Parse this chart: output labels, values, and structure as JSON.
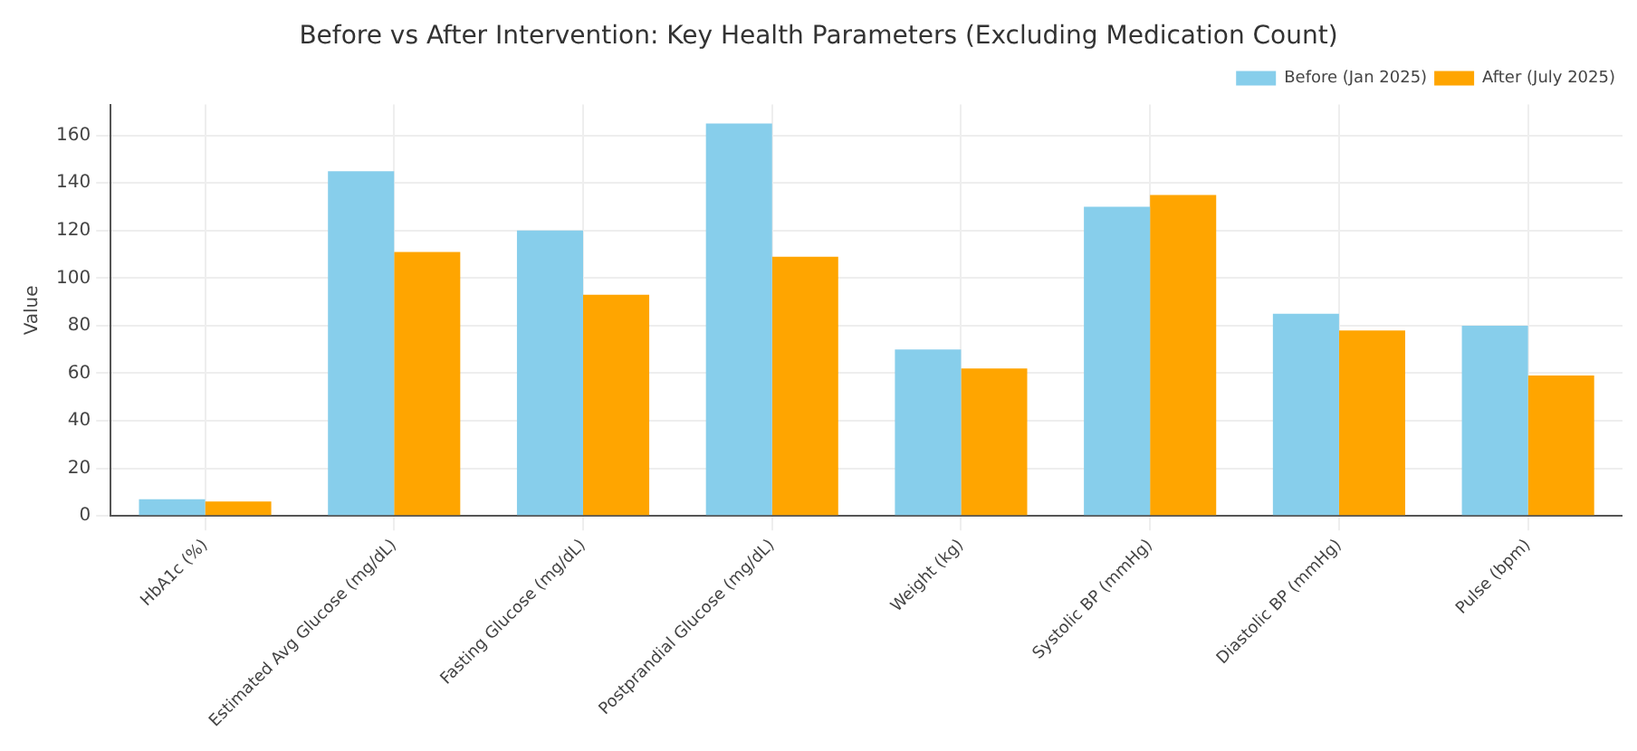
{
  "chart_data": {
    "type": "bar",
    "title": "Before vs After Intervention: Key Health Parameters (Excluding Medication Count)",
    "ylabel": "Value",
    "categories": [
      "HbA1c (%)",
      "Estimated Avg Glucose (mg/dL)",
      "Fasting Glucose (mg/dL)",
      "Postprandial Glucose (mg/dL)",
      "Weight (kg)",
      "Systolic BP (mmHg)",
      "Diastolic BP (mmHg)",
      "Pulse (bpm)"
    ],
    "series": [
      {
        "name": "Before (Jan 2025)",
        "color": "#87ceeb",
        "values": [
          7,
          145,
          120,
          165,
          70,
          130,
          85,
          80
        ]
      },
      {
        "name": "After (July 2025)",
        "color": "#ffa500",
        "values": [
          6,
          111,
          93,
          109,
          62,
          135,
          78,
          59
        ]
      }
    ],
    "ylim": [
      0,
      173
    ],
    "yticks": [
      0,
      20,
      40,
      60,
      80,
      100,
      120,
      140,
      160
    ],
    "grid": true,
    "legend": "top right"
  }
}
